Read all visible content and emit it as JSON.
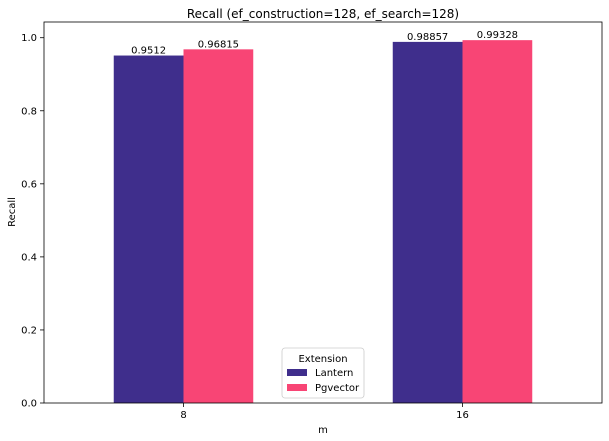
{
  "chart_data": {
    "type": "bar",
    "title": "Recall (ef_construction=128, ef_search=128)",
    "xlabel": "m",
    "ylabel": "Recall",
    "categories": [
      "8",
      "16"
    ],
    "series": [
      {
        "name": "Lantern",
        "values": [
          0.9512,
          0.98857
        ],
        "labels": [
          "0.9512",
          "0.98857"
        ],
        "color": "#3f2e8c"
      },
      {
        "name": "Pgvector",
        "values": [
          0.96815,
          0.99328
        ],
        "labels": [
          "0.96815",
          "0.99328"
        ],
        "color": "#f84575"
      }
    ],
    "ylim": [
      0,
      1.043
    ],
    "yticks": [
      "0.0",
      "0.2",
      "0.4",
      "0.6",
      "0.8",
      "1.0"
    ],
    "grid": false,
    "legend": {
      "title": "Extension",
      "placement": "bottom-center"
    }
  }
}
